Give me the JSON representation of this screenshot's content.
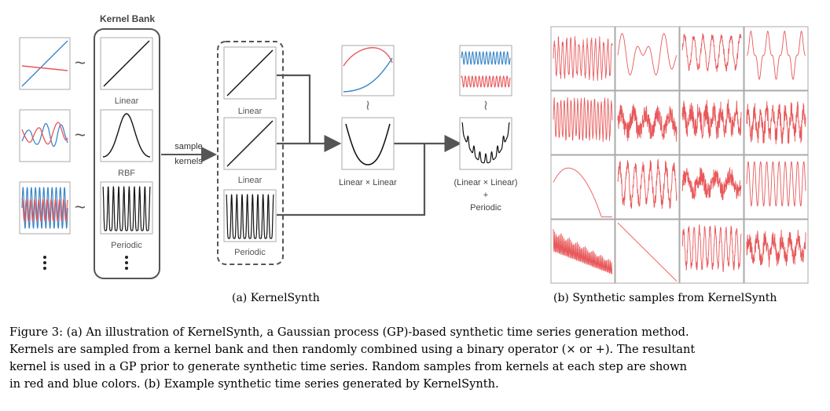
{
  "panel_a": {
    "kernel_bank_title": "Kernel Bank",
    "bank_labels": [
      "Linear",
      "RBF",
      "Periodic"
    ],
    "sample_arrow_label": [
      "sample",
      "kernels"
    ],
    "sampled_labels": [
      "Linear",
      "Linear",
      "Periodic"
    ],
    "combo1_label": "Linear × Linear",
    "combo2_label": [
      "(Linear × Linear)",
      "+",
      "Periodic"
    ],
    "tilde": "~",
    "colors": {
      "red": "#e8585a",
      "blue": "#3a86c8",
      "box": "#9a9a9a",
      "arrow": "#555555"
    },
    "caption": "(a) KernelSynth"
  },
  "panel_b": {
    "caption": "(b) Synthetic samples from KernelSynth",
    "rows": 4,
    "cols": 4
  },
  "figure_caption": [
    "Figure 3: (a) An illustration of KernelSynth, a Gaussian process (GP)-based synthetic time series generation method.",
    "Kernels are sampled from a kernel bank and then randomly combined using a binary operator (× or +). The resultant",
    "kernel is used in a GP prior to generate synthetic time series. Random samples from kernels at each step are shown",
    "in red and blue colors. (b) Example synthetic time series generated by KernelSynth."
  ]
}
